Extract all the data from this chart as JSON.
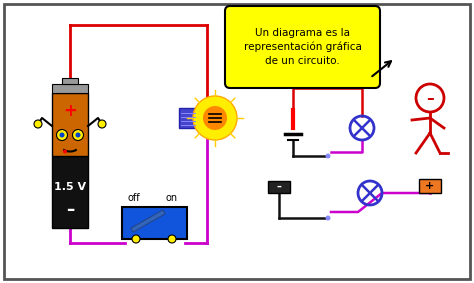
{
  "bg_color": "#ffffff",
  "border_color": "#555555",
  "bubble_text": "Un diagrama es la\nrepresentación gráfica\nde un circuito.",
  "bubble_bg": "#ffff00",
  "battery_label": "1.5 V",
  "switch_off": "off",
  "switch_on": "on",
  "wire_red": "#dd0000",
  "wire_magenta": "#cc00cc",
  "wire_black": "#111111",
  "wire_blue": "#8888ff",
  "bulb_blue": "#3333cc",
  "stick_red": "#cc0000",
  "bat_orange": "#cc6600",
  "bat_black": "#111111",
  "bat_gray": "#999999"
}
